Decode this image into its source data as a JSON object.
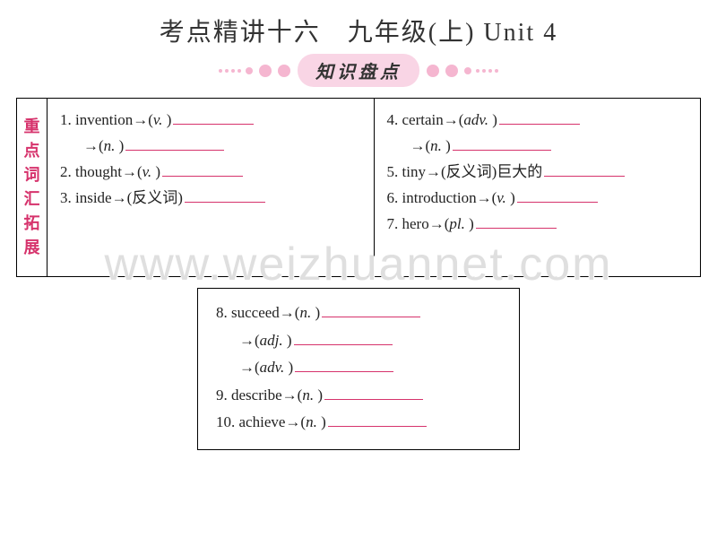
{
  "title": "考点精讲十六　九年级(上) Unit 4",
  "subtitle": "知识盘点",
  "side_label_chars": [
    "重",
    "点",
    "词",
    "汇",
    "拓",
    "展"
  ],
  "left_col": {
    "i1_num": "1. ",
    "i1_word": "invention→(",
    "i1_pos": "v.",
    "i1_close": " )",
    "i1b_open": "→(",
    "i1b_pos": "n.",
    "i1b_close": " )",
    "i2_num": "2. ",
    "i2_word": "thought→(",
    "i2_pos": "v.",
    "i2_close": " )",
    "i3_num": "3. ",
    "i3_word": "inside→(反义词)"
  },
  "right_col": {
    "i4_num": "4. ",
    "i4_word": "certain→(",
    "i4_pos": "adv.",
    "i4_close": " )",
    "i4b_open": "→(",
    "i4b_pos": "n.",
    "i4b_close": " )",
    "i5_num": "5. ",
    "i5_word": "tiny→(反义词)巨大的",
    "i6_num": "6. ",
    "i6_word": "introduction→(",
    "i6_pos": "v.",
    "i6_close": " )",
    "i7_num": "7. ",
    "i7_word": "hero→(",
    "i7_pos": "pl.",
    "i7_close": " )"
  },
  "bottom_box": {
    "i8_num": "8. ",
    "i8_word": "succeed→(",
    "i8_pos": "n.",
    "i8_close": " )",
    "i8b_open": "→(",
    "i8b_pos": "adj.",
    "i8b_close": " )",
    "i8c_open": "→(",
    "i8c_pos": "adv.",
    "i8c_close": " )",
    "i9_num": "9. ",
    "i9_word": "describe→(",
    "i9_pos": "n.",
    "i9_close": " )",
    "i10_num": "10. ",
    "i10_word": "achieve→(",
    "i10_pos": "n.",
    "i10_close": " )"
  },
  "watermark": "www.weizhuannet.com",
  "colors": {
    "accent": "#d6336c",
    "pill_bg": "#f9d5e5",
    "dot": "#f5b6d0",
    "border": "#000000",
    "text": "#222222",
    "watermark": "rgba(220,220,220,0.9)"
  }
}
